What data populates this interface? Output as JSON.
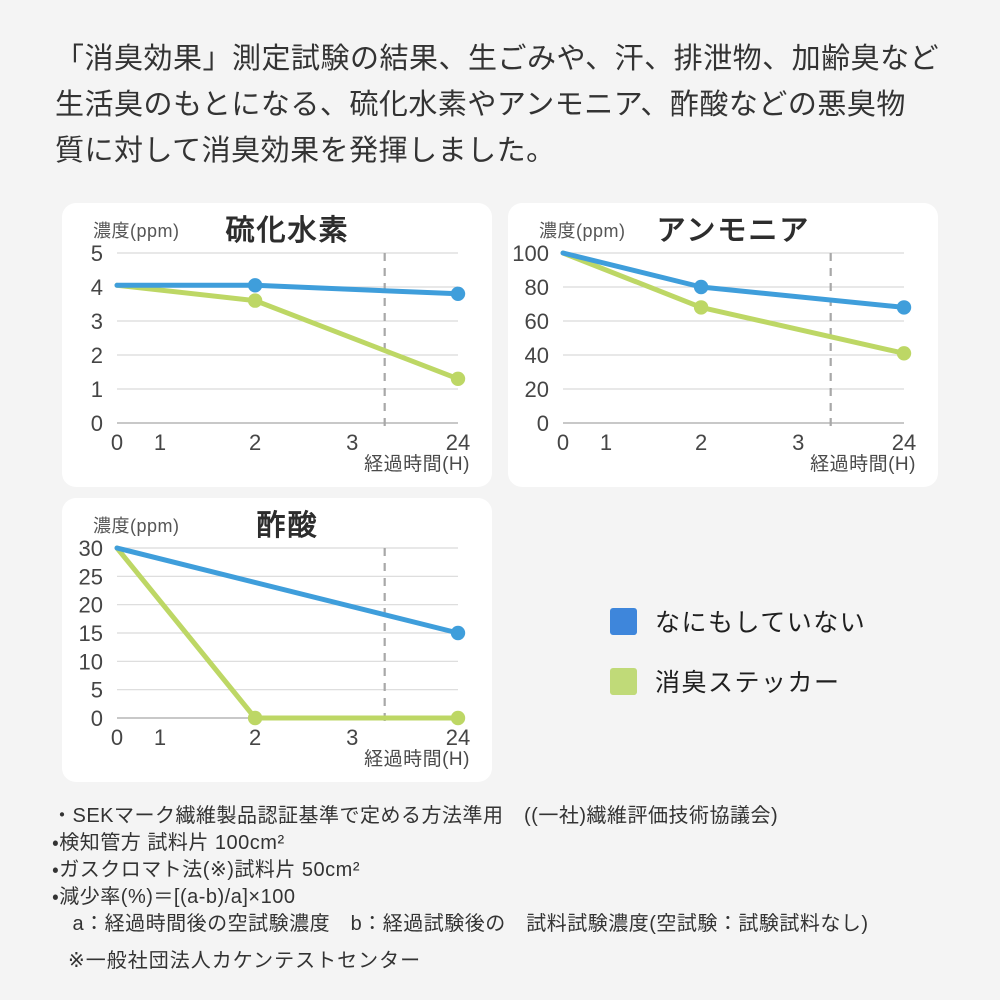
{
  "intro": {
    "text": "「消臭効果」測定試験の結果、生ごみや、汗、排泄物、加齢臭など生活臭のもとになる、硫化水素やアンモニア、酢酸などの悪臭物質に対して消臭効果を発揮しました。",
    "lines": [
      "「消臭効果」測定試験の結果、生ごみや、汗、排泄物、加齢臭など",
      "生活臭のもとになる、硫化水素やアンモニア、酢酸などの悪臭物",
      "質に対して消臭効果を発揮しました。"
    ]
  },
  "colors": {
    "page_bg": "#f4f4f4",
    "card_bg": "#ffffff",
    "line_blue": "#3f9edb",
    "line_green": "#bdd765",
    "legend_blue": "#3e86db",
    "legend_green": "#c0da78",
    "grid": "#d9d9d9",
    "axis": "#b5b5b5",
    "break_line": "#a8a8a8",
    "tick_text": "#454545"
  },
  "chart_data": [
    {
      "type": "line",
      "title": "硫化水素",
      "unit_label": "濃度(ppm)",
      "xlabel": "経過時間(H)",
      "x_categories": [
        0,
        1,
        2,
        3,
        24
      ],
      "ylim": [
        0,
        5
      ],
      "y_ticks": [
        0,
        1,
        2,
        3,
        4,
        5
      ],
      "axis_break_between": [
        3,
        24
      ],
      "grid": true,
      "series": [
        {
          "name": "なにもしていない",
          "color": "#3f9edb",
          "points": [
            [
              0,
              4.05
            ],
            [
              2,
              4.05
            ],
            [
              24,
              3.8
            ]
          ],
          "marker_points": [
            [
              2,
              4.05
            ],
            [
              24,
              3.8
            ]
          ]
        },
        {
          "name": "消臭ステッカー",
          "color": "#bdd765",
          "points": [
            [
              0,
              4.05
            ],
            [
              2,
              3.6
            ],
            [
              24,
              1.3
            ]
          ],
          "marker_points": [
            [
              2,
              3.6
            ],
            [
              24,
              1.3
            ]
          ]
        }
      ]
    },
    {
      "type": "line",
      "title": "アンモニア",
      "unit_label": "濃度(ppm)",
      "xlabel": "経過時間(H)",
      "x_categories": [
        0,
        1,
        2,
        3,
        24
      ],
      "ylim": [
        0,
        100
      ],
      "y_ticks": [
        0,
        20,
        40,
        60,
        80,
        100
      ],
      "axis_break_between": [
        3,
        24
      ],
      "grid": true,
      "series": [
        {
          "name": "なにもしていない",
          "color": "#3f9edb",
          "points": [
            [
              0,
              100
            ],
            [
              2,
              80
            ],
            [
              24,
              68
            ]
          ],
          "marker_points": [
            [
              2,
              80
            ],
            [
              24,
              68
            ]
          ]
        },
        {
          "name": "消臭ステッカー",
          "color": "#bdd765",
          "points": [
            [
              0,
              100
            ],
            [
              2,
              68
            ],
            [
              24,
              41
            ]
          ],
          "marker_points": [
            [
              2,
              68
            ],
            [
              24,
              41
            ]
          ]
        }
      ]
    },
    {
      "type": "line",
      "title": "酢酸",
      "unit_label": "濃度(ppm)",
      "xlabel": "経過時間(H)",
      "x_categories": [
        0,
        1,
        2,
        3,
        24
      ],
      "ylim": [
        0,
        30
      ],
      "y_ticks": [
        0,
        5,
        10,
        15,
        20,
        25,
        30
      ],
      "axis_break_between": [
        3,
        24
      ],
      "grid": true,
      "series": [
        {
          "name": "なにもしていない",
          "color": "#3f9edb",
          "points": [
            [
              0,
              30
            ],
            [
              24,
              15
            ]
          ],
          "marker_points": [
            [
              24,
              15
            ]
          ]
        },
        {
          "name": "消臭ステッカー",
          "color": "#bdd765",
          "points": [
            [
              0,
              30
            ],
            [
              2,
              0
            ],
            [
              24,
              0
            ]
          ],
          "marker_points": [
            [
              2,
              0
            ],
            [
              24,
              0
            ]
          ]
        }
      ]
    }
  ],
  "legend": {
    "items": [
      {
        "label": "なにもしていない",
        "color": "#3e86db"
      },
      {
        "label": "消臭ステッカー",
        "color": "#c0da78"
      }
    ]
  },
  "notes": {
    "items": [
      "・SEKマーク繊維製品認証基準で定める方法準用　((一社)繊維評価技術協議会)",
      "・検知管方 試料片 100cm²",
      "・ガスクロマト法(※)試料片 50cm²",
      "・減少率(%)＝[(a-b)/a]×100",
      "　a：経過時間後の空試験濃度　b：経過試験後の　試料試験濃度(空試験：試験試料なし)"
    ],
    "footnote": "※一般社団法人カケンテストセンター"
  }
}
